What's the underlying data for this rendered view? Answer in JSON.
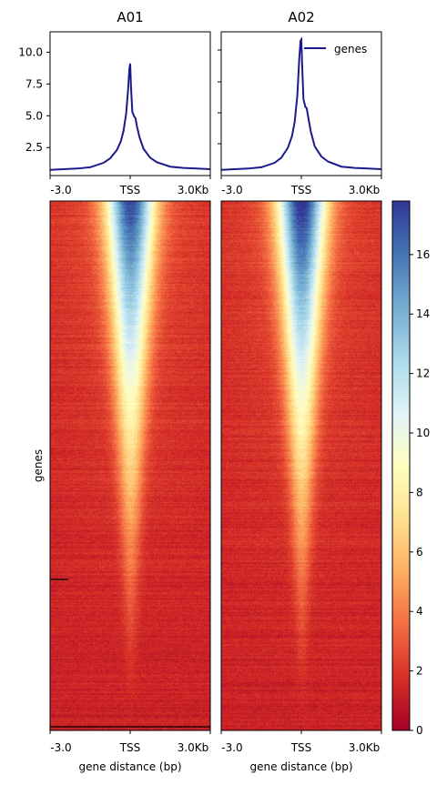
{
  "chart_data": [
    {
      "type": "line",
      "panel": "A01",
      "title": "A01",
      "xticks": [
        "-3.0",
        "TSS",
        "3.0Kb"
      ],
      "xrange_bp": [
        -3000,
        3000
      ],
      "ylim": [
        0.3,
        11.6
      ],
      "yticks": [
        2.5,
        5.0,
        7.5,
        10.0
      ],
      "ytick_labels": [
        "2.5",
        "5.0",
        "7.5",
        "10.0"
      ],
      "series": [
        {
          "color": "#1a1a8c",
          "x": [
            -3000,
            -2500,
            -2000,
            -1500,
            -1000,
            -750,
            -500,
            -350,
            -250,
            -150,
            -80,
            -30,
            0,
            30,
            80,
            150,
            200,
            250,
            350,
            500,
            750,
            1000,
            1500,
            2000,
            2500,
            3000
          ],
          "y": [
            0.75,
            0.8,
            0.85,
            0.95,
            1.3,
            1.65,
            2.3,
            3.0,
            3.8,
            5.2,
            7.0,
            8.7,
            9.1,
            7.3,
            5.3,
            4.95,
            4.8,
            4.2,
            3.3,
            2.4,
            1.7,
            1.35,
            1.0,
            0.9,
            0.85,
            0.8
          ]
        }
      ]
    },
    {
      "type": "line",
      "panel": "A02",
      "title": "A02",
      "xticks": [
        "-3.0",
        "TSS",
        "3.0Kb"
      ],
      "xrange_bp": [
        -3000,
        3000
      ],
      "ylim": [
        0.3,
        11.6
      ],
      "legend": "top-right",
      "series": [
        {
          "name": "genes",
          "color": "#1a1a8c",
          "x": [
            -3000,
            -2500,
            -2000,
            -1500,
            -1000,
            -750,
            -500,
            -350,
            -250,
            -150,
            -80,
            -30,
            0,
            30,
            80,
            150,
            200,
            250,
            350,
            500,
            750,
            1000,
            1500,
            2000,
            2500,
            3000
          ],
          "y": [
            0.75,
            0.8,
            0.85,
            0.95,
            1.3,
            1.7,
            2.5,
            3.4,
            4.5,
            6.6,
            9.4,
            10.9,
            11.0,
            9.0,
            6.3,
            5.7,
            5.6,
            5.0,
            3.8,
            2.6,
            1.8,
            1.4,
            1.0,
            0.9,
            0.85,
            0.8
          ]
        }
      ]
    },
    {
      "type": "heatmap",
      "panels": [
        "A01",
        "A02"
      ],
      "xticks": [
        "-3.0",
        "TSS",
        "3.0Kb"
      ],
      "xlabel": "gene distance (bp)",
      "ylabel": "genes",
      "colormap": "RdYlBu",
      "colorbar": {
        "range": [
          0,
          17.8
        ],
        "ticks": [
          0,
          2,
          4,
          6,
          8,
          10,
          12,
          14,
          16
        ]
      },
      "row_order": "sorted by signal, highest on top",
      "peak_signal_top_row": 17,
      "background_signal": 1.5
    }
  ],
  "legend_label": "genes"
}
